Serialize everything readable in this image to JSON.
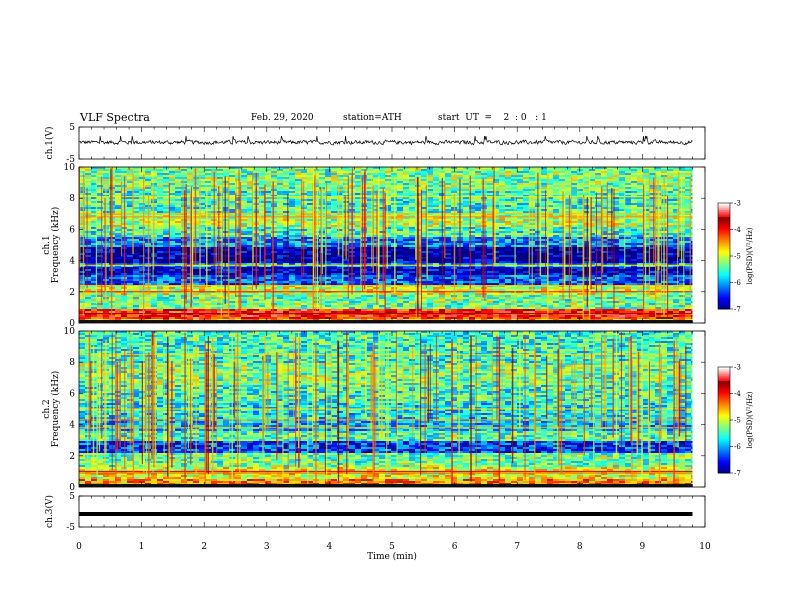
{
  "header": {
    "title": "VLF  Spectra",
    "date": "Feb. 29, 2020",
    "station": "station=ATH",
    "start_ut": "start  UT  =    2  : 0   : 1"
  },
  "chart_data": [
    {
      "type": "line",
      "panel": "ch1-waveform",
      "ylabel": "ch.1(V)",
      "ylim": [
        -5,
        5
      ],
      "y_ticks": [
        "5",
        "-5"
      ],
      "xlim": [
        0,
        10
      ],
      "series": [
        {
          "x_range": [
            0,
            9.8
          ],
          "level": 0.2,
          "amplitude": 0.9
        }
      ]
    },
    {
      "type": "heatmap",
      "panel": "ch1-spectrogram",
      "ylabel_lines": [
        "ch.1",
        "Frequency (kHz)"
      ],
      "ylim": [
        0,
        10
      ],
      "y_ticks": [
        "0",
        "2",
        "4",
        "6",
        "8",
        "10"
      ],
      "xlim": [
        0,
        10
      ],
      "data_x_range": [
        0,
        9.8
      ],
      "z_label": "log(PSD)(V²/Hz)",
      "z_range": [
        -7,
        -3
      ],
      "z_ticks": [
        "-3",
        "-4",
        "-5",
        "-6",
        "-7"
      ],
      "bands": [
        {
          "f0": 0,
          "f1": 0.3,
          "level": -4.6
        },
        {
          "f0": 0.3,
          "f1": 0.9,
          "level": -3.9
        },
        {
          "f0": 0.9,
          "f1": 1.8,
          "level": -5.3
        },
        {
          "f0": 1.8,
          "f1": 2.4,
          "level": -5.0
        },
        {
          "f0": 2.4,
          "f1": 3.1,
          "level": -6.3
        },
        {
          "f0": 3.1,
          "f1": 3.6,
          "level": -6.8
        },
        {
          "f0": 3.6,
          "f1": 3.9,
          "level": -6.0
        },
        {
          "f0": 3.9,
          "f1": 4.9,
          "level": -6.9
        },
        {
          "f0": 4.9,
          "f1": 5.5,
          "level": -6.1
        },
        {
          "f0": 5.5,
          "f1": 6.2,
          "level": -5.5
        },
        {
          "f0": 6.2,
          "f1": 7.0,
          "level": -5.1
        },
        {
          "f0": 7.0,
          "f1": 8.4,
          "level": -5.5
        },
        {
          "f0": 8.4,
          "f1": 10.0,
          "level": -5.3
        }
      ],
      "lines": [
        {
          "f": 2.0,
          "level": -4.0
        },
        {
          "f": 2.4,
          "level": -4.6
        },
        {
          "f": 3.7,
          "level": -4.8
        },
        {
          "f": 6.8,
          "level": -4.4
        },
        {
          "f": 7.0,
          "level": -4.6
        },
        {
          "f": 0.6,
          "level": -3.6
        },
        {
          "f": 8.1,
          "level": -4.9
        }
      ]
    },
    {
      "type": "heatmap",
      "panel": "ch2-spectrogram",
      "ylabel_lines": [
        "ch.2",
        "Frequency (kHz)"
      ],
      "ylim": [
        0,
        10
      ],
      "y_ticks": [
        "0",
        "2",
        "4",
        "6",
        "8",
        "10"
      ],
      "xlim": [
        0,
        10
      ],
      "data_x_range": [
        0,
        9.8
      ],
      "z_label": "log(PSD)(V²/Hz)",
      "z_range": [
        -7,
        -3
      ],
      "z_ticks": [
        "-3",
        "-4",
        "-5",
        "-6",
        "-7"
      ],
      "bands": [
        {
          "f0": 0,
          "f1": 0.5,
          "level": -4.4
        },
        {
          "f0": 0.5,
          "f1": 1.3,
          "level": -4.9
        },
        {
          "f0": 1.3,
          "f1": 2.2,
          "level": -5.3
        },
        {
          "f0": 2.2,
          "f1": 2.9,
          "level": -6.4
        },
        {
          "f0": 2.9,
          "f1": 3.6,
          "level": -5.4
        },
        {
          "f0": 3.6,
          "f1": 4.4,
          "level": -5.9
        },
        {
          "f0": 4.4,
          "f1": 5.4,
          "level": -5.7
        },
        {
          "f0": 5.4,
          "f1": 6.6,
          "level": -5.5
        },
        {
          "f0": 6.6,
          "f1": 8.0,
          "level": -5.3
        },
        {
          "f0": 8.0,
          "f1": 10.0,
          "level": -5.5
        }
      ],
      "lines": [
        {
          "f": 0.9,
          "level": -4.2
        },
        {
          "f": 1.0,
          "level": -3.8
        },
        {
          "f": 3.8,
          "level": -4.6
        },
        {
          "f": 4.3,
          "level": -4.6
        },
        {
          "f": 5.0,
          "level": -4.8
        },
        {
          "f": 8.5,
          "level": -4.7
        }
      ]
    },
    {
      "type": "line",
      "panel": "ch3-waveform",
      "ylabel": "ch.3(V)",
      "ylim": [
        -5,
        5
      ],
      "y_ticks": [
        "5",
        "-5"
      ],
      "xlim": [
        0,
        10
      ],
      "series": [
        {
          "x_range": [
            0,
            9.8
          ],
          "level": -0.8,
          "amplitude": 0
        }
      ]
    }
  ],
  "x_axis": {
    "xlabel": "Time  (min)",
    "ticks": [
      "0",
      "1",
      "2",
      "3",
      "4",
      "5",
      "6",
      "7",
      "8",
      "9",
      "10"
    ]
  }
}
